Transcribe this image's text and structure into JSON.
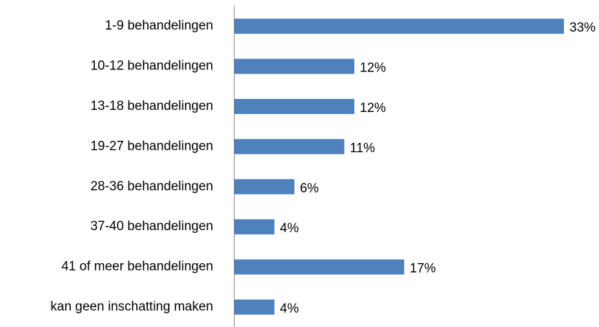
{
  "chart_data": {
    "type": "bar",
    "orientation": "horizontal",
    "categories": [
      "1-9 behandelingen",
      "10-12 behandelingen",
      "13-18 behandelingen",
      "19-27 behandelingen",
      "28-36 behandelingen",
      "37-40 behandelingen",
      "41 of meer behandelingen",
      "kan geen inschatting maken"
    ],
    "values": [
      33,
      12,
      12,
      11,
      6,
      4,
      17,
      4
    ],
    "value_labels": [
      "33%",
      "12%",
      "12%",
      "11%",
      "6%",
      "4%",
      "17%",
      "4%"
    ],
    "color": "#4f81bd"
  }
}
